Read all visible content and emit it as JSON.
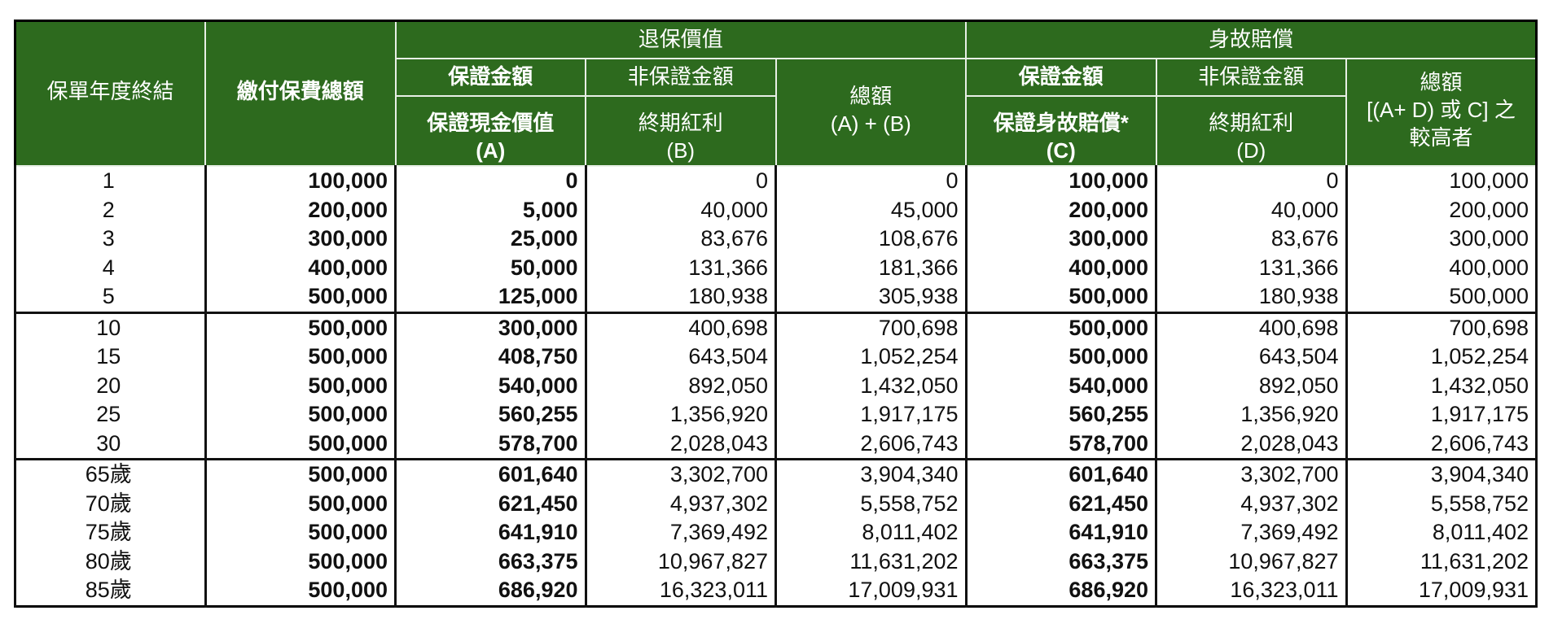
{
  "header": {
    "col_year": "保單年度終結",
    "col_premium": "繳付保費總額",
    "group_surrender": "退保價值",
    "group_death": "身故賠償",
    "surrender": {
      "guaranteed_label": "保證金額",
      "non_guaranteed_label": "非保證金額",
      "col_a_title": "保證現金價值",
      "col_a_code": "(A)",
      "col_b_title": "終期紅利",
      "col_b_code": "(B)",
      "total_title": "總額",
      "total_formula": "(A) + (B)"
    },
    "death": {
      "guaranteed_label": "保證金額",
      "non_guaranteed_label": "非保證金額",
      "col_c_title": "保證身故賠償*",
      "col_c_code": "(C)",
      "col_d_title": "終期紅利",
      "col_d_code": "(D)",
      "total_title": "總額",
      "total_formula": "[(A+ D) 或 C] 之",
      "total_suffix": "較高者"
    }
  },
  "rows": [
    {
      "year": "1",
      "premium": "100,000",
      "a": "0",
      "b": "0",
      "ab": "0",
      "c": "100,000",
      "d": "0",
      "total": "100,000"
    },
    {
      "year": "2",
      "premium": "200,000",
      "a": "5,000",
      "b": "40,000",
      "ab": "45,000",
      "c": "200,000",
      "d": "40,000",
      "total": "200,000"
    },
    {
      "year": "3",
      "premium": "300,000",
      "a": "25,000",
      "b": "83,676",
      "ab": "108,676",
      "c": "300,000",
      "d": "83,676",
      "total": "300,000"
    },
    {
      "year": "4",
      "premium": "400,000",
      "a": "50,000",
      "b": "131,366",
      "ab": "181,366",
      "c": "400,000",
      "d": "131,366",
      "total": "400,000"
    },
    {
      "year": "5",
      "premium": "500,000",
      "a": "125,000",
      "b": "180,938",
      "ab": "305,938",
      "c": "500,000",
      "d": "180,938",
      "total": "500,000"
    },
    {
      "year": "10",
      "premium": "500,000",
      "a": "300,000",
      "b": "400,698",
      "ab": "700,698",
      "c": "500,000",
      "d": "400,698",
      "total": "700,698"
    },
    {
      "year": "15",
      "premium": "500,000",
      "a": "408,750",
      "b": "643,504",
      "ab": "1,052,254",
      "c": "500,000",
      "d": "643,504",
      "total": "1,052,254"
    },
    {
      "year": "20",
      "premium": "500,000",
      "a": "540,000",
      "b": "892,050",
      "ab": "1,432,050",
      "c": "540,000",
      "d": "892,050",
      "total": "1,432,050"
    },
    {
      "year": "25",
      "premium": "500,000",
      "a": "560,255",
      "b": "1,356,920",
      "ab": "1,917,175",
      "c": "560,255",
      "d": "1,356,920",
      "total": "1,917,175"
    },
    {
      "year": "30",
      "premium": "500,000",
      "a": "578,700",
      "b": "2,028,043",
      "ab": "2,606,743",
      "c": "578,700",
      "d": "2,028,043",
      "total": "2,606,743"
    },
    {
      "year": "65歲",
      "premium": "500,000",
      "a": "601,640",
      "b": "3,302,700",
      "ab": "3,904,340",
      "c": "601,640",
      "d": "3,302,700",
      "total": "3,904,340"
    },
    {
      "year": "70歲",
      "premium": "500,000",
      "a": "621,450",
      "b": "4,937,302",
      "ab": "5,558,752",
      "c": "621,450",
      "d": "4,937,302",
      "total": "5,558,752"
    },
    {
      "year": "75歲",
      "premium": "500,000",
      "a": "641,910",
      "b": "7,369,492",
      "ab": "8,011,402",
      "c": "641,910",
      "d": "7,369,492",
      "total": "8,011,402"
    },
    {
      "year": "80歲",
      "premium": "500,000",
      "a": "663,375",
      "b": "10,967,827",
      "ab": "11,631,202",
      "c": "663,375",
      "d": "10,967,827",
      "total": "11,631,202"
    },
    {
      "year": "85歲",
      "premium": "500,000",
      "a": "686,920",
      "b": "16,323,011",
      "ab": "17,009,931",
      "c": "686,920",
      "d": "16,323,011",
      "total": "17,009,931"
    }
  ],
  "group_starts": [
    5,
    10
  ],
  "colors": {
    "header_bg": "#2d6a1e",
    "header_text": "#ffffff",
    "border": "#111111"
  }
}
